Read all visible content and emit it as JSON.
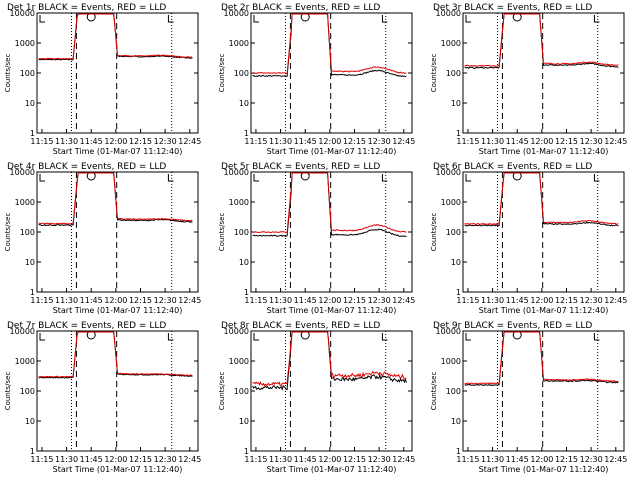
{
  "chart_data": {
    "type": "line",
    "scale": "log",
    "ylim": [
      1,
      10000
    ],
    "y_ticks": [
      "1",
      "10",
      "100",
      "1000",
      "10000"
    ],
    "x_ticks": [
      "11:15",
      "11:30",
      "11:45",
      "12:00",
      "12:15",
      "12:30",
      "12:45"
    ],
    "xlabel": "Start Time (01-Mar-07 11:12:40)",
    "ylabel": "Counts/sec",
    "series_colors": {
      "events": "#000000",
      "lld": "#e00000"
    },
    "panels": [
      {
        "title": "Det 1r BLACK = Events, RED = LLD",
        "base_black": 280,
        "base_red": 300,
        "post_black": 330,
        "post_red": 350,
        "bump": 1.1,
        "noise": 0.03
      },
      {
        "title": "Det 2r BLACK = Events, RED = LLD",
        "base_black": 80,
        "base_red": 100,
        "post_black": 80,
        "post_red": 105,
        "bump": 1.5,
        "noise": 0.04
      },
      {
        "title": "Det 3r BLACK = Events, RED = LLD",
        "base_black": 150,
        "base_red": 175,
        "post_black": 170,
        "post_red": 190,
        "bump": 1.2,
        "noise": 0.04
      },
      {
        "title": "Det 4r BLACK = Events, RED = LLD",
        "base_black": 170,
        "base_red": 190,
        "post_black": 230,
        "post_red": 250,
        "bump": 1.1,
        "noise": 0.04
      },
      {
        "title": "Det 5r BLACK = Events, RED = LLD",
        "base_black": 75,
        "base_red": 100,
        "post_black": 75,
        "post_red": 105,
        "bump": 1.6,
        "noise": 0.04
      },
      {
        "title": "Det 6r BLACK = Events, RED = LLD",
        "base_black": 165,
        "base_red": 185,
        "post_black": 170,
        "post_red": 195,
        "bump": 1.2,
        "noise": 0.04
      },
      {
        "title": "Det 7r BLACK = Events, RED = LLD",
        "base_black": 280,
        "base_red": 300,
        "post_black": 330,
        "post_red": 350,
        "bump": 1.05,
        "noise": 0.03
      },
      {
        "title": "Det 8r BLACK = Events, RED = LLD",
        "base_black": 130,
        "base_red": 170,
        "post_black": 230,
        "post_red": 310,
        "bump": 1.3,
        "noise": 0.15
      },
      {
        "title": "Det 9r BLACK = Events, RED = LLD",
        "base_black": 160,
        "base_red": 180,
        "post_black": 200,
        "post_red": 220,
        "bump": 1.1,
        "noise": 0.04
      }
    ]
  }
}
